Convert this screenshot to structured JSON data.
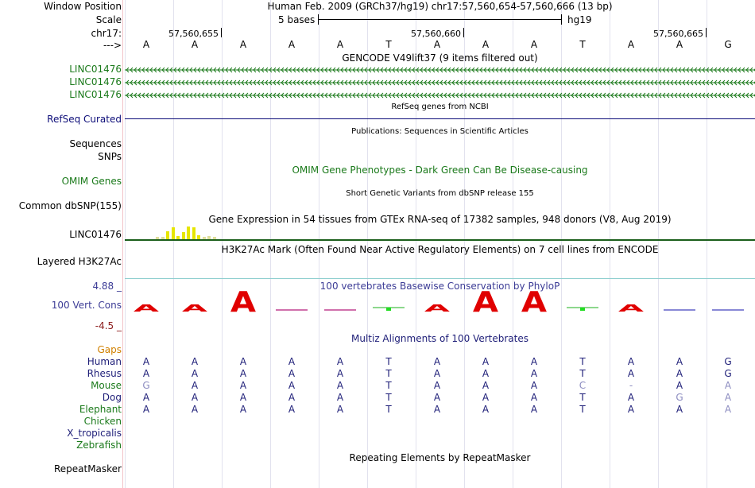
{
  "header": {
    "window_position_label": "Window Position",
    "window_position_value": "Human Feb. 2009 (GRCh37/hg19)   chr17:57,560,654-57,560,666 (13 bp)",
    "scale_label": "Scale",
    "scale_bases": "5 bases",
    "scale_assembly": "hg19",
    "chrom_label": "chr17:",
    "strand_label": "--->",
    "coord_ticks": [
      "57,560,655",
      "57,560,660",
      "57,560,665"
    ],
    "reference_bases": [
      "A",
      "A",
      "A",
      "A",
      "A",
      "T",
      "A",
      "A",
      "A",
      "T",
      "A",
      "A",
      "G"
    ]
  },
  "tracks": {
    "gencode": {
      "title": "GENCODE V49lift37 (9 items filtered out)",
      "rows": [
        "LINC01476",
        "LINC01476",
        "LINC01476"
      ],
      "color": "#1b7a1b"
    },
    "refseq": {
      "title": "RefSeq genes from NCBI",
      "label": "RefSeq Curated",
      "color": "#0c0c78"
    },
    "publications": {
      "title": "Publications: Sequences in Scientific Articles",
      "labels": [
        "Sequences",
        "SNPs"
      ]
    },
    "omim": {
      "title": "OMIM Gene Phenotypes - Dark Green Can Be Disease-causing",
      "label": "OMIM Genes",
      "color": "#1b7a1b"
    },
    "dbsnp": {
      "title": "Short Genetic Variants from dbSNP release 155",
      "label": "Common dbSNP(155)"
    },
    "gtex": {
      "title": "Gene Expression in 54 tissues from GTEx RNA-seq of 17382 samples, 948 donors (V8, Aug 2019)",
      "label": "LINC01476",
      "bar_values": [
        0.15,
        0.2,
        0.6,
        0.9,
        0.25,
        0.5,
        0.95,
        0.9,
        0.3,
        0.15,
        0.25,
        0.15
      ]
    },
    "h3k27ac": {
      "title": "H3K27Ac Mark (Often Found Near Active Regulatory Elements) on 7 cell lines from ENCODE",
      "label": "Layered H3K27Ac"
    },
    "phylop": {
      "title": "100 vertebrates Basewise Conservation by PhyloP",
      "label": "100 Vert. Cons",
      "max_label": "4.88 _",
      "min_label": "-4.5 _",
      "scores": [
        1.6,
        1.6,
        4.2,
        0.3,
        0.2,
        -0.8,
        1.6,
        4.2,
        4.2,
        -0.7,
        1.8,
        0.5,
        0.4
      ]
    },
    "multiz": {
      "title": "Multiz Alignments of 100 Vertebrates",
      "gaps_label": "Gaps",
      "species": [
        {
          "name": "Human",
          "bases": [
            "A",
            "A",
            "A",
            "A",
            "A",
            "T",
            "A",
            "A",
            "A",
            "T",
            "A",
            "A",
            "G"
          ],
          "light": [
            false,
            false,
            false,
            false,
            false,
            false,
            false,
            false,
            false,
            false,
            false,
            false,
            false
          ]
        },
        {
          "name": "Rhesus",
          "bases": [
            "A",
            "A",
            "A",
            "A",
            "A",
            "T",
            "A",
            "A",
            "A",
            "T",
            "A",
            "A",
            "G"
          ],
          "light": [
            false,
            false,
            false,
            false,
            false,
            false,
            false,
            false,
            false,
            false,
            false,
            false,
            false
          ]
        },
        {
          "name": "Mouse",
          "bases": [
            "G",
            "A",
            "A",
            "A",
            "A",
            "T",
            "A",
            "A",
            "A",
            "C",
            "-",
            "A",
            "A"
          ],
          "light": [
            true,
            false,
            false,
            false,
            false,
            false,
            false,
            false,
            false,
            true,
            true,
            false,
            true
          ]
        },
        {
          "name": "Dog",
          "bases": [
            "A",
            "A",
            "A",
            "A",
            "A",
            "T",
            "A",
            "A",
            "A",
            "T",
            "A",
            "G",
            "A"
          ],
          "light": [
            false,
            false,
            false,
            false,
            false,
            false,
            false,
            false,
            false,
            false,
            false,
            true,
            true
          ]
        },
        {
          "name": "Elephant",
          "bases": [
            "A",
            "A",
            "A",
            "A",
            "A",
            "T",
            "A",
            "A",
            "A",
            "T",
            "A",
            "A",
            "A"
          ],
          "light": [
            false,
            false,
            false,
            false,
            false,
            false,
            false,
            false,
            false,
            false,
            false,
            false,
            true
          ]
        },
        {
          "name": "Chicken",
          "bases": [],
          "light": []
        },
        {
          "name": "X_tropicalis",
          "bases": [],
          "light": []
        },
        {
          "name": "Zebrafish",
          "bases": [],
          "light": []
        }
      ]
    },
    "repeatmasker": {
      "title": "Repeating Elements by RepeatMasker",
      "label": "RepeatMasker"
    }
  },
  "colors": {
    "gencode_green": "#1b7a1b",
    "refseq_navy": "#0c0c78",
    "phylop_blue": "#3c3c96",
    "phylop_red": "#e00000",
    "phylop_neg": "#8b1a1a",
    "gaps_orange": "#d08000",
    "multiz_navy": "#1e1e78"
  }
}
